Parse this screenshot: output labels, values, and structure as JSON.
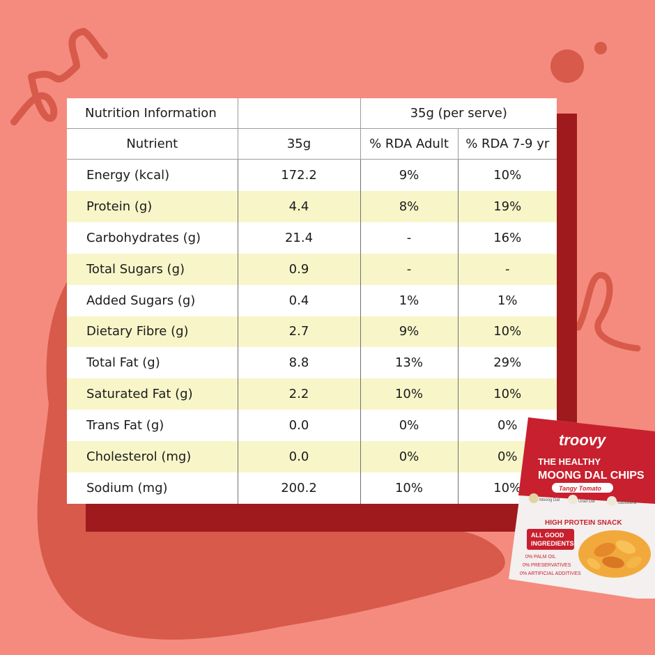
{
  "colors": {
    "background": "#f48b7e",
    "shadow": "#9e1a1c",
    "blob": "#d75a4a",
    "highlight_row": "#f8f6c9"
  },
  "table": {
    "title": "Nutrition Information",
    "serving": "35g (per serve)",
    "columns": [
      "Nutrient",
      "35g",
      "% RDA Adult",
      "% RDA 7-9 yr"
    ],
    "rows": [
      {
        "nutrient": "Energy (kcal)",
        "amount": "172.2",
        "rda_adult": "9%",
        "rda_child": "10%"
      },
      {
        "nutrient": "Protein (g)",
        "amount": "4.4",
        "rda_adult": "8%",
        "rda_child": "19%"
      },
      {
        "nutrient": "Carbohydrates (g)",
        "amount": "21.4",
        "rda_adult": "-",
        "rda_child": "16%"
      },
      {
        "nutrient": "Total Sugars (g)",
        "amount": "0.9",
        "rda_adult": "-",
        "rda_child": "-"
      },
      {
        "nutrient": "Added Sugars (g)",
        "amount": "0.4",
        "rda_adult": "1%",
        "rda_child": "1%"
      },
      {
        "nutrient": "Dietary Fibre (g)",
        "amount": "2.7",
        "rda_adult": "9%",
        "rda_child": "10%"
      },
      {
        "nutrient": "Total Fat (g)",
        "amount": "8.8",
        "rda_adult": "13%",
        "rda_child": "29%"
      },
      {
        "nutrient": "Saturated Fat (g)",
        "amount": "2.2",
        "rda_adult": "10%",
        "rda_child": "10%"
      },
      {
        "nutrient": "Trans Fat (g)",
        "amount": "0.0",
        "rda_adult": "0%",
        "rda_child": "0%"
      },
      {
        "nutrient": "Cholesterol (mg)",
        "amount": "0.0",
        "rda_adult": "0%",
        "rda_child": "0%"
      },
      {
        "nutrient": "Sodium (mg)",
        "amount": "200.2",
        "rda_adult": "10%",
        "rda_child": "10%"
      }
    ]
  },
  "package": {
    "brand": "troovy",
    "tagline": "THE HEALTHY",
    "product": "MOONG DAL CHIPS",
    "flavor": "Tangy Tomato",
    "ingredients": [
      "Moong Dal",
      "Urad Dal",
      "Sabudana"
    ],
    "badge": "HIGH PROTEIN SNACK",
    "good_label_1": "ALL GOOD",
    "good_label_2": "INGREDIENTS",
    "claims": [
      "0% PALM OIL",
      "0% PRESERVATIVES",
      "0% ARTIFICIAL ADDITIVES"
    ],
    "icon": "chips-packet-icon"
  }
}
